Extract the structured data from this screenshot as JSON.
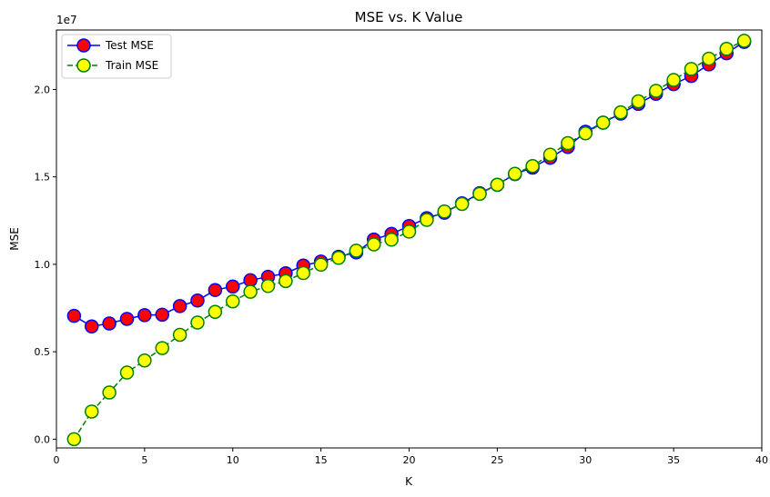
{
  "chart_data": {
    "type": "line",
    "title": "MSE vs. K Value",
    "xlabel": "K",
    "ylabel": "MSE",
    "y_scale_label": "1e7",
    "xlim": [
      0,
      40
    ],
    "ylim": [
      -0.05,
      2.34
    ],
    "xticks": [
      0,
      5,
      10,
      15,
      20,
      25,
      30,
      35,
      40
    ],
    "xtick_labels": [
      "0",
      "5",
      "10",
      "15",
      "20",
      "25",
      "30",
      "35",
      "40"
    ],
    "yticks": [
      0.0,
      0.5,
      1.0,
      1.5,
      2.0
    ],
    "ytick_labels": [
      "0.0",
      "0.5",
      "1.0",
      "1.5",
      "2.0"
    ],
    "grid": false,
    "legend_position": "top-left",
    "x": [
      1,
      2,
      3,
      4,
      5,
      6,
      7,
      8,
      9,
      10,
      11,
      12,
      13,
      14,
      15,
      16,
      17,
      18,
      19,
      20,
      21,
      22,
      23,
      24,
      25,
      26,
      27,
      28,
      29,
      30,
      31,
      32,
      33,
      34,
      35,
      36,
      37,
      38,
      39
    ],
    "series": [
      {
        "name": "Test MSE",
        "line_color": "#0000ff",
        "marker_face": "#ff0000",
        "marker_edge": "#0000ff",
        "line_style": "solid",
        "values": [
          0.705,
          0.645,
          0.662,
          0.688,
          0.709,
          0.712,
          0.761,
          0.793,
          0.853,
          0.873,
          0.909,
          0.929,
          0.949,
          0.993,
          1.016,
          1.043,
          1.068,
          1.142,
          1.174,
          1.219,
          1.264,
          1.295,
          1.349,
          1.407,
          1.455,
          1.516,
          1.553,
          1.609,
          1.671,
          1.758,
          1.81,
          1.862,
          1.917,
          1.975,
          2.03,
          2.077,
          2.143,
          2.207,
          2.272
        ]
      },
      {
        "name": "Train MSE",
        "line_color": "#008000",
        "marker_face": "#ffff00",
        "marker_edge": "#008000",
        "line_style": "dashed",
        "values": [
          0.0,
          0.158,
          0.267,
          0.381,
          0.45,
          0.521,
          0.597,
          0.667,
          0.728,
          0.788,
          0.843,
          0.876,
          0.904,
          0.95,
          0.998,
          1.037,
          1.078,
          1.114,
          1.141,
          1.187,
          1.254,
          1.302,
          1.345,
          1.403,
          1.455,
          1.518,
          1.562,
          1.627,
          1.693,
          1.749,
          1.81,
          1.869,
          1.932,
          1.992,
          2.054,
          2.117,
          2.176,
          2.232,
          2.278
        ]
      }
    ]
  }
}
